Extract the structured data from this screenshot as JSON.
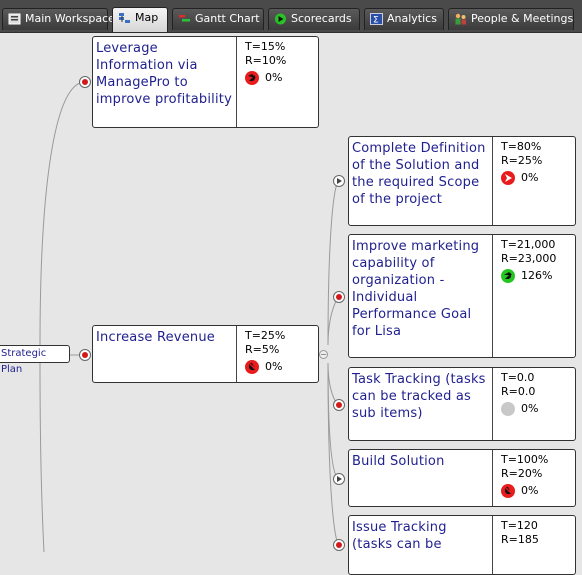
{
  "tabs": [
    {
      "label": "Main Workspace",
      "icon": "workspace-icon"
    },
    {
      "label": "Map",
      "icon": "map-icon",
      "active": true
    },
    {
      "label": "Gantt Chart",
      "icon": "gantt-icon"
    },
    {
      "label": "Scorecards",
      "icon": "scorecard-icon"
    },
    {
      "label": "Analytics",
      "icon": "analytics-icon"
    },
    {
      "label": "People & Meetings",
      "icon": "people-icon"
    }
  ],
  "root": {
    "label": "Strategic Plan"
  },
  "nodes": [
    {
      "title": "Leverage Information via ManagePro to improve profitability",
      "target": "T=15%",
      "result": "R=10%",
      "progress": "0%",
      "status_color": "#e81c1c"
    },
    {
      "title": "Increase Revenue",
      "target": "T=25%",
      "result": "R=5%",
      "progress": "0%",
      "status_color": "#e81c1c"
    },
    {
      "title": "Complete Definition of the Solution and the required Scope of the project",
      "target": "T=80%",
      "result": "R=25%",
      "progress": "0%",
      "status_color": "#e81c1c"
    },
    {
      "title": "Improve marketing capability of organization - Individual Performance Goal for Lisa",
      "target": "T=21,000",
      "result": "R=23,000",
      "progress": "126%",
      "status_color": "#24c61f"
    },
    {
      "title": "Task Tracking (tasks can be tracked as sub items)",
      "target": "T=0.0",
      "result": "R=0.0",
      "progress": "0%",
      "status_color": "#c8c8c8"
    },
    {
      "title": "Build Solution",
      "target": "T=100%",
      "result": "R=20%",
      "progress": "0%",
      "status_color": "#e81c1c"
    },
    {
      "title": "Issue Tracking (tasks can be",
      "target": "T=120",
      "result": "R=185",
      "progress": "",
      "status_color": ""
    }
  ]
}
